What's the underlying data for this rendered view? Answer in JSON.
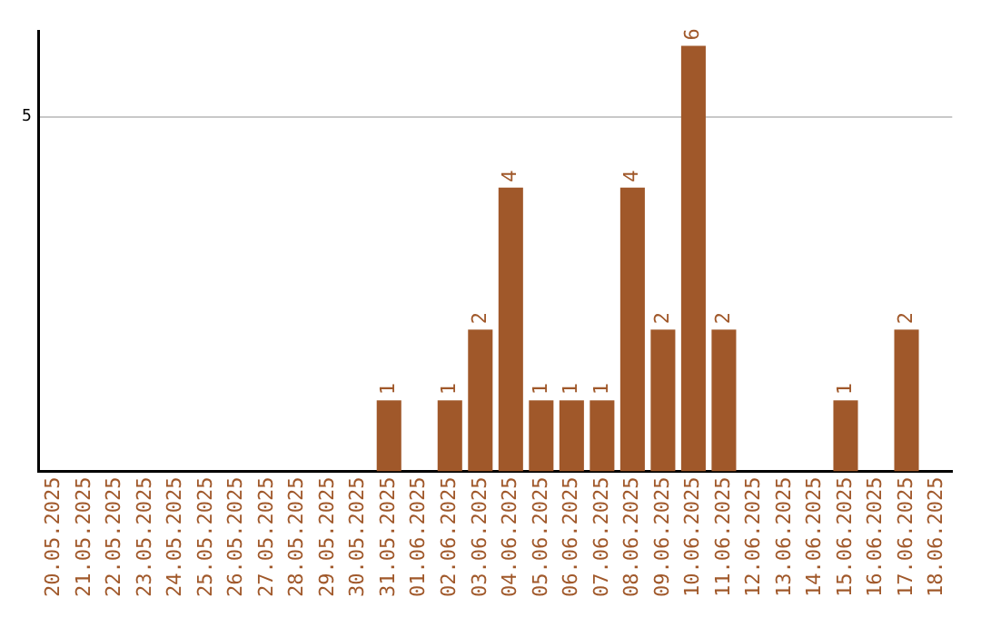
{
  "chart_data": {
    "type": "bar",
    "categories": [
      "20.05.2025",
      "21.05.2025",
      "22.05.2025",
      "23.05.2025",
      "24.05.2025",
      "25.05.2025",
      "26.05.2025",
      "27.05.2025",
      "28.05.2025",
      "29.05.2025",
      "30.05.2025",
      "31.05.2025",
      "01.06.2025",
      "02.06.2025",
      "03.06.2025",
      "04.06.2025",
      "05.06.2025",
      "06.06.2025",
      "07.06.2025",
      "08.06.2025",
      "09.06.2025",
      "10.06.2025",
      "11.06.2025",
      "12.06.2025",
      "13.06.2025",
      "14.06.2025",
      "15.06.2025",
      "16.06.2025",
      "17.06.2025",
      "18.06.2025"
    ],
    "values": [
      null,
      null,
      null,
      null,
      null,
      null,
      null,
      null,
      null,
      null,
      null,
      1,
      null,
      1,
      2,
      4,
      1,
      1,
      1,
      4,
      2,
      6,
      2,
      null,
      null,
      null,
      1,
      null,
      2,
      null
    ],
    "color": "#a0582a",
    "ylim": [
      0,
      6.2
    ],
    "yticks": [
      5
    ],
    "grid": "y",
    "data_labels": true,
    "legend": false
  }
}
